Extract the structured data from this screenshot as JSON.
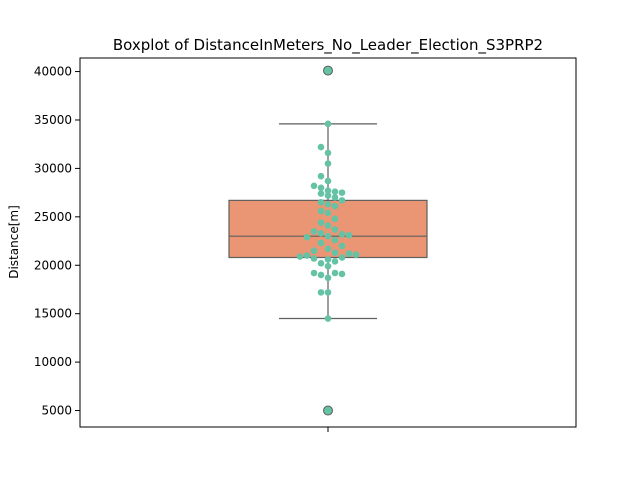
{
  "chart_data": {
    "type": "boxplot",
    "title": "Boxplot of DistanceInMeters_No_Leader_Election_S3PRP2",
    "xlabel": "",
    "ylabel": "Distance[m]",
    "ylim": [
      3300,
      41400
    ],
    "yticks": [
      5000,
      10000,
      15000,
      20000,
      25000,
      30000,
      35000,
      40000
    ],
    "ytick_labels": [
      "5000",
      "10000",
      "15000",
      "20000",
      "25000",
      "30000",
      "35000",
      "40000"
    ],
    "grid": false,
    "box": {
      "whisker_low": 14500,
      "q1": 20800,
      "median": 23000,
      "q3": 26700,
      "whisker_high": 34600,
      "outliers": [
        40100,
        5000
      ],
      "color": "#ea9674",
      "edge_color": "#5f5f5f"
    },
    "swarm": {
      "color": "#66c2a5",
      "points": [
        {
          "y": 40100,
          "offset": 0
        },
        {
          "y": 34600,
          "offset": 0
        },
        {
          "y": 32200,
          "offset": -1
        },
        {
          "y": 31600,
          "offset": 0
        },
        {
          "y": 30500,
          "offset": 0
        },
        {
          "y": 29200,
          "offset": -1
        },
        {
          "y": 28700,
          "offset": 0
        },
        {
          "y": 28200,
          "offset": -2
        },
        {
          "y": 28000,
          "offset": -1
        },
        {
          "y": 27700,
          "offset": 0
        },
        {
          "y": 27600,
          "offset": 1
        },
        {
          "y": 27500,
          "offset": 2
        },
        {
          "y": 27400,
          "offset": -1
        },
        {
          "y": 27200,
          "offset": 0
        },
        {
          "y": 27000,
          "offset": 1
        },
        {
          "y": 26700,
          "offset": 2
        },
        {
          "y": 26500,
          "offset": -1
        },
        {
          "y": 26300,
          "offset": 0
        },
        {
          "y": 26100,
          "offset": 1
        },
        {
          "y": 25600,
          "offset": -1
        },
        {
          "y": 25400,
          "offset": 0
        },
        {
          "y": 24800,
          "offset": 1
        },
        {
          "y": 24400,
          "offset": -1
        },
        {
          "y": 24100,
          "offset": 0
        },
        {
          "y": 23700,
          "offset": 1
        },
        {
          "y": 23500,
          "offset": -2
        },
        {
          "y": 23300,
          "offset": -1
        },
        {
          "y": 23200,
          "offset": 2
        },
        {
          "y": 23100,
          "offset": 3
        },
        {
          "y": 23000,
          "offset": 0
        },
        {
          "y": 22900,
          "offset": -3
        },
        {
          "y": 22600,
          "offset": 1
        },
        {
          "y": 22300,
          "offset": -1
        },
        {
          "y": 22000,
          "offset": 2
        },
        {
          "y": 21700,
          "offset": 0
        },
        {
          "y": 21500,
          "offset": -2
        },
        {
          "y": 21300,
          "offset": 1
        },
        {
          "y": 21200,
          "offset": 3
        },
        {
          "y": 21100,
          "offset": 4
        },
        {
          "y": 21000,
          "offset": -3
        },
        {
          "y": 20900,
          "offset": -4
        },
        {
          "y": 20800,
          "offset": 2
        },
        {
          "y": 20700,
          "offset": -2
        },
        {
          "y": 20600,
          "offset": 0
        },
        {
          "y": 20400,
          "offset": 1
        },
        {
          "y": 20200,
          "offset": -1
        },
        {
          "y": 19900,
          "offset": 0
        },
        {
          "y": 19200,
          "offset": -2
        },
        {
          "y": 19200,
          "offset": 1
        },
        {
          "y": 19100,
          "offset": 2
        },
        {
          "y": 19000,
          "offset": -1
        },
        {
          "y": 18700,
          "offset": 0
        },
        {
          "y": 17200,
          "offset": -1
        },
        {
          "y": 17200,
          "offset": 0
        },
        {
          "y": 14500,
          "offset": 0
        },
        {
          "y": 5000,
          "offset": 0
        }
      ]
    }
  }
}
